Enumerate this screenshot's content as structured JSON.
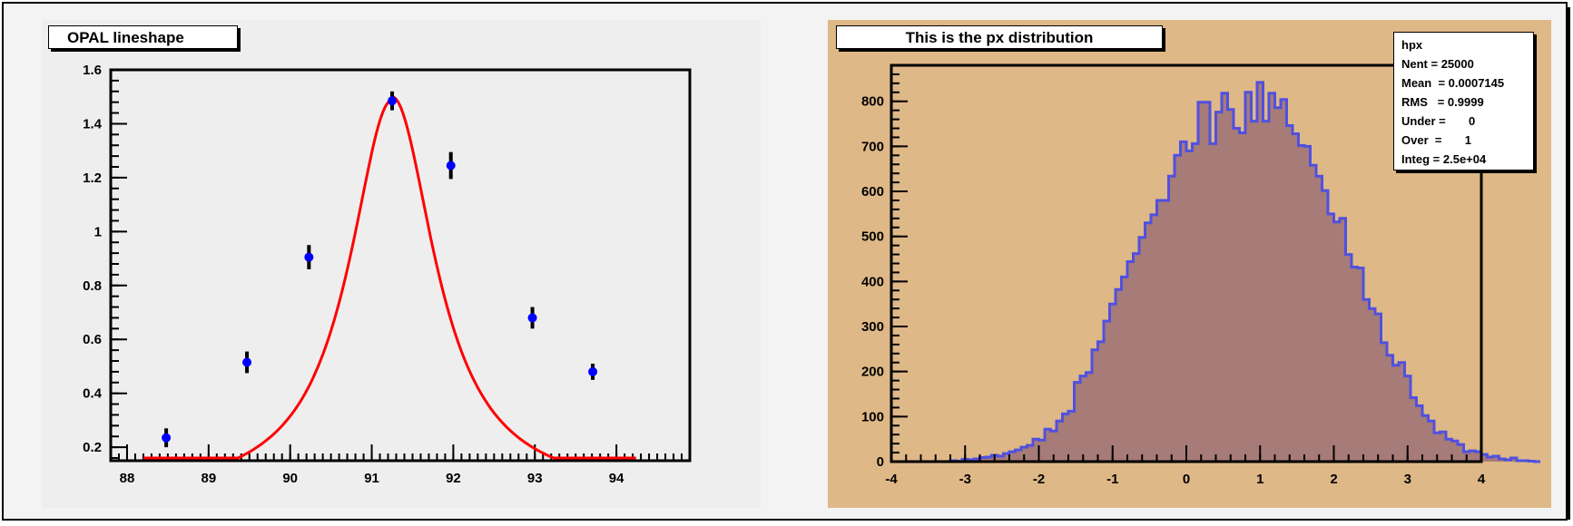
{
  "colors": {
    "canvas_bg": "#f3f3f3",
    "left_pad_bg": "#eeeeee",
    "right_pad_bg": "#deb887",
    "fit_curve": "#ff0000",
    "points": "#0000ff",
    "error_bars": "#000000",
    "hist_fill": "#a67b78",
    "hist_line": "#5050e0"
  },
  "left_title": "OPAL lineshape",
  "right_title": "This is the px distribution",
  "stats": {
    "name": "hpx",
    "nent": "Nent = 25000",
    "mean": "Mean  = 0.0007145",
    "rms": "RMS   = 0.9999",
    "under": "Under =       0",
    "over": "Over  =       1",
    "integ": "Integ = 2.5e+04"
  },
  "chart_data": [
    {
      "type": "scatter",
      "title": "OPAL lineshape",
      "xlim": [
        87.8,
        94.9
      ],
      "ylim": [
        0.15,
        1.6
      ],
      "x_ticks": [
        "88",
        "89",
        "90",
        "91",
        "92",
        "93",
        "94"
      ],
      "y_ticks": [
        "0.2",
        "0.4",
        "0.6",
        "0.8",
        "1",
        "1.2",
        "1.4",
        "1.6"
      ],
      "points": [
        {
          "x": 88.48,
          "y": 0.235,
          "err": 0.035
        },
        {
          "x": 89.47,
          "y": 0.515,
          "err": 0.04
        },
        {
          "x": 90.23,
          "y": 0.905,
          "err": 0.045
        },
        {
          "x": 91.25,
          "y": 1.485,
          "err": 0.035
        },
        {
          "x": 91.97,
          "y": 1.245,
          "err": 0.05
        },
        {
          "x": 92.97,
          "y": 0.68,
          "err": 0.04
        },
        {
          "x": 93.71,
          "y": 0.48,
          "err": 0.03
        }
      ],
      "fit": {
        "type": "lorentzian",
        "x0": 91.25,
        "gamma": 1.28,
        "peak": 1.48,
        "baseline": 0.0,
        "xrange": [
          88.2,
          94.25
        ]
      }
    },
    {
      "type": "bar",
      "title": "This is the px distribution",
      "xlim": [
        -4,
        4
      ],
      "ylim": [
        0,
        880
      ],
      "x_ticks": [
        "-4",
        "-3",
        "-2",
        "-1",
        "0",
        "1",
        "2",
        "3",
        "4"
      ],
      "y_ticks": [
        "0",
        "100",
        "200",
        "300",
        "400",
        "500",
        "600",
        "700",
        "800"
      ],
      "bin_width": 0.08,
      "bin_start": -3.2,
      "values": [
        2,
        1,
        5,
        4,
        6,
        9,
        10,
        14,
        12,
        18,
        22,
        26,
        32,
        36,
        50,
        48,
        72,
        68,
        90,
        106,
        112,
        176,
        190,
        198,
        248,
        266,
        312,
        350,
        382,
        410,
        444,
        462,
        498,
        530,
        548,
        580,
        580,
        634,
        680,
        710,
        690,
        706,
        798,
        798,
        706,
        776,
        818,
        782,
        740,
        730,
        820,
        756,
        842,
        756,
        818,
        786,
        804,
        746,
        728,
        702,
        700,
        658,
        634,
        602,
        550,
        532,
        540,
        460,
        432,
        430,
        360,
        340,
        328,
        264,
        236,
        214,
        220,
        190,
        142,
        124,
        102,
        90,
        64,
        66,
        50,
        46,
        38,
        22,
        24,
        22,
        16,
        10,
        12,
        6,
        4,
        8,
        2,
        2,
        1,
        0
      ]
    }
  ]
}
